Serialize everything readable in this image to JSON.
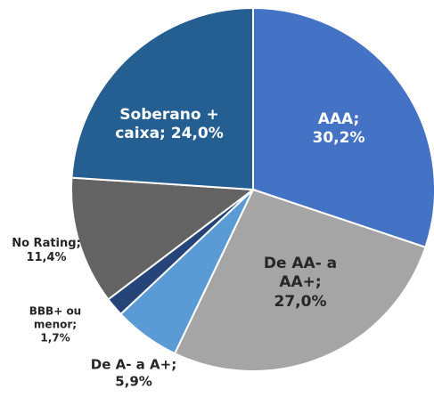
{
  "chart_data": {
    "type": "pie",
    "categories": [
      "AAA;",
      "De AA- a AA+;",
      "De A- a A+;",
      "BBB+ ou menor;",
      "No Rating;",
      "Soberano + caixa;"
    ],
    "values": [
      30.2,
      27.0,
      5.9,
      1.7,
      11.4,
      24.0
    ],
    "value_labels": [
      "30,2%",
      "27,0%",
      "5,9%",
      "1,7%",
      "11,4%",
      "24,0%"
    ],
    "colors": [
      "#4472c4",
      "#a5a5a5",
      "#5b9bd5",
      "#264478",
      "#636363",
      "#255e91"
    ]
  }
}
